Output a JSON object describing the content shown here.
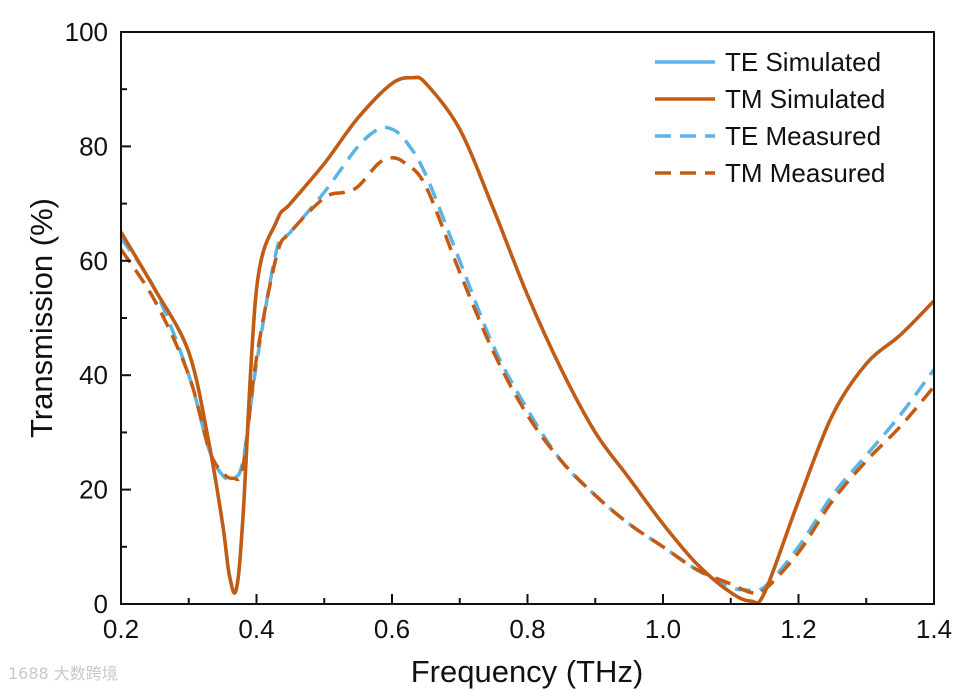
{
  "chart_data": {
    "type": "line",
    "xlabel": "Frequency (THz)",
    "ylabel": "Transmission (%)",
    "xlim": [
      0.2,
      1.4
    ],
    "ylim": [
      0,
      100
    ],
    "xticks": [
      "0.2",
      "0.4",
      "0.6",
      "0.8",
      "1.0",
      "1.2",
      "1.4"
    ],
    "yticks": [
      "0",
      "20",
      "40",
      "60",
      "80",
      "100"
    ],
    "legend_position": "top-right",
    "series": [
      {
        "name": "TE  Simulated",
        "color": "#5ab4e5",
        "style": "solid",
        "x": [
          0.2,
          0.25,
          0.3,
          0.33,
          0.35,
          0.36,
          0.37,
          0.38,
          0.4,
          0.43,
          0.45,
          0.5,
          0.55,
          0.6,
          0.63,
          0.65,
          0.7,
          0.75,
          0.8,
          0.85,
          0.9,
          0.95,
          1.0,
          1.05,
          1.1,
          1.13,
          1.15,
          1.2,
          1.25,
          1.3,
          1.35,
          1.4
        ],
        "y": [
          65,
          55,
          44,
          28,
          14,
          5,
          2.5,
          15,
          55,
          67,
          70,
          77,
          85,
          91,
          92,
          91,
          83,
          69,
          54,
          41,
          30,
          22,
          14,
          7,
          2,
          0.5,
          2,
          18,
          33,
          42,
          47,
          53
        ]
      },
      {
        "name": "TM Simulated",
        "color": "#c55a11",
        "style": "solid",
        "x": [
          0.2,
          0.25,
          0.3,
          0.33,
          0.35,
          0.36,
          0.37,
          0.38,
          0.4,
          0.43,
          0.45,
          0.5,
          0.55,
          0.6,
          0.63,
          0.65,
          0.7,
          0.75,
          0.8,
          0.85,
          0.9,
          0.95,
          1.0,
          1.05,
          1.1,
          1.13,
          1.15,
          1.2,
          1.25,
          1.3,
          1.35,
          1.4
        ],
        "y": [
          65,
          55,
          44,
          28,
          14,
          5,
          2.5,
          15,
          55,
          67,
          70,
          77,
          85,
          91,
          92,
          91,
          83,
          69,
          54,
          41,
          30,
          22,
          14,
          7,
          2,
          0.5,
          2,
          18,
          33,
          42,
          47,
          53
        ]
      },
      {
        "name": "TE  Measured",
        "color": "#5ab4e5",
        "style": "dashed",
        "x": [
          0.2,
          0.25,
          0.3,
          0.33,
          0.35,
          0.365,
          0.38,
          0.4,
          0.43,
          0.45,
          0.5,
          0.55,
          0.58,
          0.6,
          0.62,
          0.65,
          0.7,
          0.75,
          0.8,
          0.85,
          0.9,
          0.95,
          1.0,
          1.05,
          1.1,
          1.12,
          1.15,
          1.2,
          1.25,
          1.3,
          1.35,
          1.4
        ],
        "y": [
          64,
          55,
          40,
          27,
          22.5,
          22,
          25,
          42,
          62,
          65,
          72,
          80,
          83,
          83,
          81,
          75,
          60,
          45,
          34,
          25,
          19,
          14,
          10,
          6,
          3,
          2.5,
          3,
          10,
          19,
          26,
          33,
          41
        ]
      },
      {
        "name": "TM Measured",
        "color": "#c55a11",
        "style": "dashed",
        "x": [
          0.2,
          0.25,
          0.3,
          0.33,
          0.35,
          0.365,
          0.38,
          0.4,
          0.43,
          0.45,
          0.5,
          0.53,
          0.55,
          0.58,
          0.6,
          0.62,
          0.65,
          0.7,
          0.75,
          0.8,
          0.85,
          0.9,
          0.95,
          1.0,
          1.05,
          1.1,
          1.13,
          1.15,
          1.2,
          1.25,
          1.3,
          1.35,
          1.4
        ],
        "y": [
          62,
          53,
          40,
          27,
          23,
          22,
          24,
          43,
          61,
          65,
          71,
          72,
          73,
          77,
          78,
          77,
          73,
          58,
          44,
          33,
          25,
          19,
          14,
          10,
          6,
          3.5,
          2,
          2.5,
          9,
          18,
          25,
          31,
          38
        ]
      }
    ]
  },
  "watermark": "1688 大数跨境"
}
